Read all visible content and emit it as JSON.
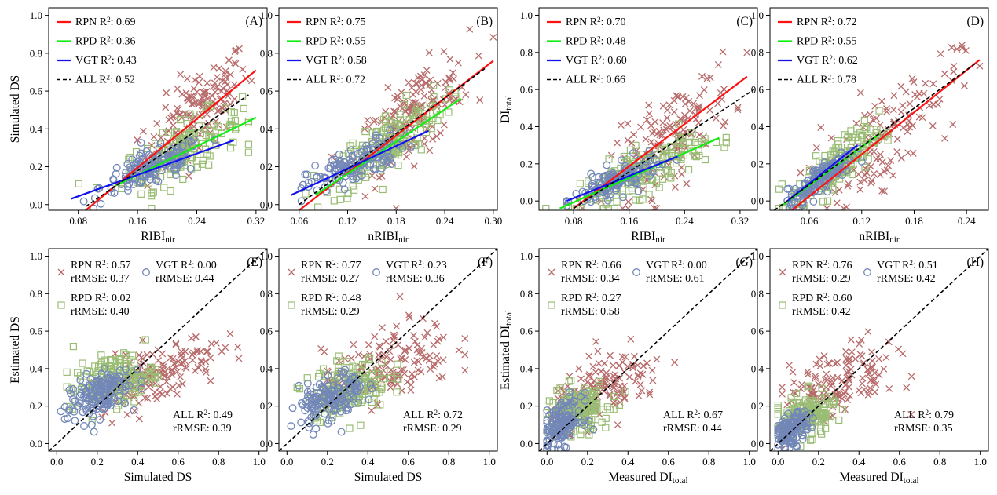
{
  "figure": {
    "title": "",
    "colors": {
      "RPN": "#b86a6a",
      "RPD": "#9abd74",
      "VGT": "#7287b8",
      "RPN_line": "#ff1111",
      "RPD_line": "#11ee11",
      "VGT_line": "#1111ee",
      "ALL_line": "#000000"
    }
  },
  "chart_data": [
    {
      "id": "A",
      "type": "scatter",
      "panel_label": "(A)",
      "xlabel": "RIBI",
      "xlabel_sub": "nir",
      "ylabel": "Simulated DS",
      "ylabel_sub": "",
      "xlim": [
        0.04,
        0.335
      ],
      "ylim": [
        -0.03,
        1.04
      ],
      "xticks": [
        0.08,
        0.16,
        0.24,
        0.32
      ],
      "xtick_labels": [
        "0.08",
        "0.16",
        "0.24",
        "0.32"
      ],
      "yticks": [
        0.0,
        0.2,
        0.4,
        0.6,
        0.8,
        1.0
      ],
      "ytick_labels": [
        "0.0",
        "0.2",
        "0.4",
        "0.6",
        "0.8",
        "1.0"
      ],
      "legend": [
        {
          "name": "RPN",
          "stat": "R",
          "sup": "2",
          "value": ": 0.69"
        },
        {
          "name": "RPD",
          "stat": "R",
          "sup": "2",
          "value": ": 0.36"
        },
        {
          "name": "VGT",
          "stat": "R",
          "sup": "2",
          "value": ": 0.43"
        },
        {
          "name": "ALL",
          "stat": "R",
          "sup": "2",
          "value": ": 0.52"
        }
      ],
      "fit_lines": {
        "RPN": {
          "x": [
            0.09,
            0.32
          ],
          "y": [
            -0.03,
            0.71
          ]
        },
        "RPD": {
          "x": [
            0.13,
            0.32
          ],
          "y": [
            0.1,
            0.46
          ]
        },
        "VGT": {
          "x": [
            0.07,
            0.29
          ],
          "y": [
            0.03,
            0.34
          ]
        },
        "ALL": {
          "x": [
            0.09,
            0.31
          ],
          "y": [
            -0.01,
            0.58
          ]
        }
      },
      "clusters": {
        "RPN": {
          "x_range": [
            0.05,
            0.32
          ],
          "center": [
            0.24,
            0.52
          ],
          "spread": [
            0.035,
            0.14
          ],
          "n": 160
        },
        "RPD": {
          "x_range": [
            0.08,
            0.31
          ],
          "center": [
            0.22,
            0.32
          ],
          "spread": [
            0.04,
            0.09
          ],
          "n": 160
        },
        "VGT": {
          "x_range": [
            0.07,
            0.29
          ],
          "center": [
            0.18,
            0.2
          ],
          "spread": [
            0.035,
            0.06
          ],
          "n": 140
        }
      }
    },
    {
      "id": "B",
      "type": "scatter",
      "panel_label": "(B)",
      "xlabel": "nRIBI",
      "xlabel_sub": "nir",
      "ylabel": "",
      "ylabel_sub": "",
      "xlim": [
        0.035,
        0.305
      ],
      "ylim": [
        -0.03,
        1.04
      ],
      "xticks": [
        0.06,
        0.12,
        0.18,
        0.24,
        0.3
      ],
      "xtick_labels": [
        "0.06",
        "0.12",
        "0.18",
        "0.24",
        "0.30"
      ],
      "yticks": [
        0.0,
        0.2,
        0.4,
        0.6,
        0.8,
        1.0
      ],
      "ytick_labels": [
        "0.0",
        "0.2",
        "0.4",
        "0.6",
        "0.8",
        "1.0"
      ],
      "legend": [
        {
          "name": "RPN",
          "stat": "R",
          "sup": "2",
          "value": ": 0.75"
        },
        {
          "name": "RPD",
          "stat": "R",
          "sup": "2",
          "value": ": 0.55"
        },
        {
          "name": "VGT",
          "stat": "R",
          "sup": "2",
          "value": ": 0.58"
        },
        {
          "name": "ALL",
          "stat": "R",
          "sup": "2",
          "value": ": 0.72"
        }
      ],
      "fit_lines": {
        "RPN": {
          "x": [
            0.06,
            0.3
          ],
          "y": [
            -0.03,
            0.76
          ]
        },
        "RPD": {
          "x": [
            0.08,
            0.26
          ],
          "y": [
            0.05,
            0.56
          ]
        },
        "VGT": {
          "x": [
            0.05,
            0.22
          ],
          "y": [
            0.05,
            0.39
          ]
        },
        "ALL": {
          "x": [
            0.06,
            0.29
          ],
          "y": [
            0.0,
            0.72
          ]
        }
      },
      "clusters": {
        "RPN": {
          "x_range": [
            0.05,
            0.3
          ],
          "center": [
            0.2,
            0.52
          ],
          "spread": [
            0.035,
            0.14
          ],
          "n": 160
        },
        "RPD": {
          "x_range": [
            0.06,
            0.27
          ],
          "center": [
            0.17,
            0.36
          ],
          "spread": [
            0.035,
            0.1
          ],
          "n": 160
        },
        "VGT": {
          "x_range": [
            0.05,
            0.22
          ],
          "center": [
            0.13,
            0.22
          ],
          "spread": [
            0.03,
            0.06
          ],
          "n": 140
        }
      }
    },
    {
      "id": "C",
      "type": "scatter",
      "panel_label": "(C)",
      "xlabel": "RIBI",
      "xlabel_sub": "nir",
      "ylabel": "DI",
      "ylabel_sub": "total",
      "xlim": [
        0.03,
        0.345
      ],
      "ylim": [
        -0.05,
        1.04
      ],
      "xticks": [
        0.08,
        0.16,
        0.24,
        0.32
      ],
      "xtick_labels": [
        "0.08",
        "0.16",
        "0.24",
        "0.32"
      ],
      "yticks": [
        0.0,
        0.2,
        0.4,
        0.6,
        0.8,
        1.0
      ],
      "ytick_labels": [
        "0.0",
        "0.2",
        "0.4",
        "0.6",
        "0.8",
        "1.0"
      ],
      "legend": [
        {
          "name": "RPN",
          "stat": "R",
          "sup": "2",
          "value": ": 0.70"
        },
        {
          "name": "RPD",
          "stat": "R",
          "sup": "2",
          "value": ": 0.48"
        },
        {
          "name": "VGT",
          "stat": "R",
          "sup": "2",
          "value": ": 0.60"
        },
        {
          "name": "ALL",
          "stat": "R",
          "sup": "2",
          "value": ": 0.66"
        }
      ],
      "fit_lines": {
        "RPN": {
          "x": [
            0.08,
            0.33
          ],
          "y": [
            -0.04,
            0.67
          ]
        },
        "RPD": {
          "x": [
            0.06,
            0.29
          ],
          "y": [
            -0.04,
            0.34
          ]
        },
        "VGT": {
          "x": [
            0.07,
            0.23
          ],
          "y": [
            0.0,
            0.24
          ]
        },
        "ALL": {
          "x": [
            0.08,
            0.34
          ],
          "y": [
            -0.04,
            0.6
          ]
        }
      },
      "clusters": {
        "RPN": {
          "x_range": [
            0.08,
            0.33
          ],
          "center": [
            0.22,
            0.32
          ],
          "spread": [
            0.045,
            0.15
          ],
          "n": 150
        },
        "RPD": {
          "x_range": [
            0.04,
            0.3
          ],
          "center": [
            0.18,
            0.17
          ],
          "spread": [
            0.045,
            0.08
          ],
          "n": 170
        },
        "VGT": {
          "x_range": [
            0.07,
            0.23
          ],
          "center": [
            0.14,
            0.1
          ],
          "spread": [
            0.03,
            0.05
          ],
          "n": 130
        }
      }
    },
    {
      "id": "D",
      "type": "scatter",
      "panel_label": "(D)",
      "xlabel": "nRIBI",
      "xlabel_sub": "nir",
      "ylabel": "",
      "ylabel_sub": "",
      "xlim": [
        0.015,
        0.265
      ],
      "ylim": [
        -0.05,
        1.04
      ],
      "xticks": [
        0.06,
        0.12,
        0.18,
        0.24
      ],
      "xtick_labels": [
        "0.06",
        "0.12",
        "0.18",
        "0.24"
      ],
      "yticks": [
        0.0,
        0.2,
        0.4,
        0.6,
        0.8,
        1.0
      ],
      "ytick_labels": [
        "0.0",
        "0.2",
        "0.4",
        "0.6",
        "0.8",
        "1.0"
      ],
      "legend": [
        {
          "name": "RPN",
          "stat": "R",
          "sup": "2",
          "value": ": 0.72"
        },
        {
          "name": "RPD",
          "stat": "R",
          "sup": "2",
          "value": ": 0.55"
        },
        {
          "name": "VGT",
          "stat": "R",
          "sup": "2",
          "value": ": 0.62"
        },
        {
          "name": "ALL",
          "stat": "R",
          "sup": "2",
          "value": ": 0.78"
        }
      ],
      "fit_lines": {
        "RPN": {
          "x": [
            0.04,
            0.255
          ],
          "y": [
            -0.05,
            0.76
          ]
        },
        "RPD": {
          "x": [
            0.03,
            0.14
          ],
          "y": [
            -0.02,
            0.36
          ]
        },
        "VGT": {
          "x": [
            0.035,
            0.115
          ],
          "y": [
            0.0,
            0.3
          ]
        },
        "ALL": {
          "x": [
            0.02,
            0.25
          ],
          "y": [
            -0.05,
            0.74
          ]
        }
      },
      "clusters": {
        "RPN": {
          "x_range": [
            0.05,
            0.255
          ],
          "center": [
            0.14,
            0.33
          ],
          "spread": [
            0.045,
            0.16
          ],
          "n": 140
        },
        "RPD": {
          "x_range": [
            0.025,
            0.15
          ],
          "center": [
            0.09,
            0.18
          ],
          "spread": [
            0.025,
            0.08
          ],
          "n": 170
        },
        "VGT": {
          "x_range": [
            0.035,
            0.12
          ],
          "center": [
            0.075,
            0.1
          ],
          "spread": [
            0.02,
            0.05
          ],
          "n": 140
        }
      }
    },
    {
      "id": "E",
      "type": "scatter",
      "panel_label": "(E)",
      "xlabel": "Simulated DS",
      "xlabel_sub": "",
      "ylabel": "Estimated DS",
      "ylabel_sub": "",
      "xlim": [
        -0.04,
        1.04
      ],
      "ylim": [
        -0.04,
        1.04
      ],
      "xticks": [
        0.0,
        0.2,
        0.4,
        0.6,
        0.8,
        1.0
      ],
      "xtick_labels": [
        "0.0",
        "0.2",
        "0.4",
        "0.6",
        "0.8",
        "1.0"
      ],
      "yticks": [
        0.0,
        0.2,
        0.4,
        0.6,
        0.8,
        1.0
      ],
      "ytick_labels": [
        "0.0",
        "0.2",
        "0.4",
        "0.6",
        "0.8",
        "1.0"
      ],
      "stats": {
        "RPN": {
          "r2_label": "RPN R",
          "r2_value": ": 0.57",
          "rmse": "rRMSE: 0.37"
        },
        "VGT": {
          "r2_label": "VGT R",
          "r2_value": ": 0.00",
          "rmse": "rRMSE: 0.44"
        },
        "RPD": {
          "r2_label": "RPD R",
          "r2_value": ": 0.02",
          "rmse": "rRMSE: 0.40"
        },
        "ALL": {
          "r2_label": "ALL R",
          "r2_value": ": 0.49",
          "rmse": "rRMSE: 0.39"
        }
      },
      "one_to_one": [
        [
          -0.04,
          -0.04
        ],
        [
          1.04,
          1.04
        ]
      ],
      "clusters": {
        "RPN": {
          "x_range": [
            0.0,
            0.9
          ],
          "center": [
            0.5,
            0.38
          ],
          "spread": [
            0.15,
            0.1
          ],
          "n": 150
        },
        "RPD": {
          "x_range": [
            0.05,
            0.5
          ],
          "center": [
            0.28,
            0.34
          ],
          "spread": [
            0.1,
            0.08
          ],
          "n": 160
        },
        "VGT": {
          "x_range": [
            0.02,
            0.42
          ],
          "center": [
            0.2,
            0.26
          ],
          "spread": [
            0.08,
            0.08
          ],
          "n": 150
        }
      }
    },
    {
      "id": "F",
      "type": "scatter",
      "panel_label": "(F)",
      "xlabel": "Simulated DS",
      "xlabel_sub": "",
      "ylabel": "",
      "ylabel_sub": "",
      "xlim": [
        -0.04,
        1.04
      ],
      "ylim": [
        -0.04,
        1.04
      ],
      "xticks": [
        0.0,
        0.2,
        0.4,
        0.6,
        0.8,
        1.0
      ],
      "xtick_labels": [
        "0.0",
        "0.2",
        "0.4",
        "0.6",
        "0.8",
        "1.0"
      ],
      "yticks": [
        0.0,
        0.2,
        0.4,
        0.6,
        0.8,
        1.0
      ],
      "ytick_labels": [
        "0.0",
        "0.2",
        "0.4",
        "0.6",
        "0.8",
        "1.0"
      ],
      "stats": {
        "RPN": {
          "r2_label": "RPN R",
          "r2_value": ": 0.77",
          "rmse": "rRMSE: 0.27"
        },
        "VGT": {
          "r2_label": "VGT R",
          "r2_value": ": 0.23",
          "rmse": "rRMSE: 0.36"
        },
        "RPD": {
          "r2_label": "RPD R",
          "r2_value": ": 0.48",
          "rmse": "rRMSE: 0.29"
        },
        "ALL": {
          "r2_label": "ALL R",
          "r2_value": ": 0.72",
          "rmse": "rRMSE: 0.29"
        }
      },
      "one_to_one": [
        [
          -0.04,
          -0.04
        ],
        [
          1.04,
          1.04
        ]
      ],
      "clusters": {
        "RPN": {
          "x_range": [
            0.0,
            0.88
          ],
          "center": [
            0.5,
            0.42
          ],
          "spread": [
            0.16,
            0.12
          ],
          "n": 150
        },
        "RPD": {
          "x_range": [
            0.05,
            0.55
          ],
          "center": [
            0.3,
            0.3
          ],
          "spread": [
            0.1,
            0.09
          ],
          "n": 160
        },
        "VGT": {
          "x_range": [
            0.02,
            0.42
          ],
          "center": [
            0.22,
            0.24
          ],
          "spread": [
            0.08,
            0.08
          ],
          "n": 150
        }
      }
    },
    {
      "id": "G",
      "type": "scatter",
      "panel_label": "(G)",
      "xlabel": "Measured DI",
      "xlabel_sub": "total",
      "ylabel": "Estimated DI",
      "ylabel_sub": "total",
      "xlim": [
        -0.04,
        1.04
      ],
      "ylim": [
        -0.04,
        1.04
      ],
      "xticks": [
        0.0,
        0.2,
        0.4,
        0.6,
        0.8,
        1.0
      ],
      "xtick_labels": [
        "0.0",
        "0.2",
        "0.4",
        "0.6",
        "0.8",
        "1.0"
      ],
      "yticks": [
        0.0,
        0.2,
        0.4,
        0.6,
        0.8,
        1.0
      ],
      "ytick_labels": [
        "0.0",
        "0.2",
        "0.4",
        "0.6",
        "0.8",
        "1.0"
      ],
      "stats": {
        "RPN": {
          "r2_label": "RPN R",
          "r2_value": ": 0.66",
          "rmse": "rRMSE: 0.34"
        },
        "VGT": {
          "r2_label": "VGT R",
          "r2_value": ": 0.00",
          "rmse": "rRMSE: 0.61"
        },
        "RPD": {
          "r2_label": "RPD R",
          "r2_value": ": 0.27",
          "rmse": "rRMSE: 0.58"
        },
        "ALL": {
          "r2_label": "ALL R",
          "r2_value": ": 0.67",
          "rmse": "rRMSE: 0.44"
        }
      },
      "one_to_one": [
        [
          -0.04,
          -0.04
        ],
        [
          1.04,
          1.04
        ]
      ],
      "clusters": {
        "RPN": {
          "x_range": [
            0.02,
            0.66
          ],
          "center": [
            0.3,
            0.3
          ],
          "spread": [
            0.14,
            0.1
          ],
          "n": 140
        },
        "RPD": {
          "x_range": [
            0.0,
            0.4
          ],
          "center": [
            0.15,
            0.18
          ],
          "spread": [
            0.08,
            0.08
          ],
          "n": 160
        },
        "VGT": {
          "x_range": [
            0.0,
            0.3
          ],
          "center": [
            0.07,
            0.1
          ],
          "spread": [
            0.05,
            0.07
          ],
          "n": 140
        }
      }
    },
    {
      "id": "H",
      "type": "scatter",
      "panel_label": "(H)",
      "xlabel": "Measured DI",
      "xlabel_sub": "total",
      "ylabel": "",
      "ylabel_sub": "",
      "xlim": [
        -0.04,
        1.04
      ],
      "ylim": [
        -0.04,
        1.04
      ],
      "xticks": [
        0.0,
        0.2,
        0.4,
        0.6,
        0.8,
        1.0
      ],
      "xtick_labels": [
        "0.0",
        "0.2",
        "0.4",
        "0.6",
        "0.8",
        "1.0"
      ],
      "yticks": [
        0.0,
        0.2,
        0.4,
        0.6,
        0.8,
        1.0
      ],
      "ytick_labels": [
        "0.0",
        "0.2",
        "0.4",
        "0.6",
        "0.8",
        "1.0"
      ],
      "stats": {
        "RPN": {
          "r2_label": "RPN R",
          "r2_value": ": 0.76",
          "rmse": "rRMSE: 0.29"
        },
        "VGT": {
          "r2_label": "VGT R",
          "r2_value": ": 0.51",
          "rmse": "rRMSE: 0.42"
        },
        "RPD": {
          "r2_label": "RPD R",
          "r2_value": ": 0.60",
          "rmse": "rRMSE: 0.42"
        },
        "ALL": {
          "r2_label": "ALL R",
          "r2_value": ": 0.79",
          "rmse": "rRMSE: 0.35"
        }
      },
      "one_to_one": [
        [
          -0.04,
          -0.04
        ],
        [
          1.04,
          1.04
        ]
      ],
      "clusters": {
        "RPN": {
          "x_range": [
            0.02,
            0.66
          ],
          "center": [
            0.3,
            0.32
          ],
          "spread": [
            0.14,
            0.12
          ],
          "n": 140
        },
        "RPD": {
          "x_range": [
            0.0,
            0.35
          ],
          "center": [
            0.14,
            0.15
          ],
          "spread": [
            0.07,
            0.07
          ],
          "n": 160
        },
        "VGT": {
          "x_range": [
            0.0,
            0.25
          ],
          "center": [
            0.07,
            0.07
          ],
          "spread": [
            0.04,
            0.05
          ],
          "n": 140
        }
      }
    }
  ]
}
